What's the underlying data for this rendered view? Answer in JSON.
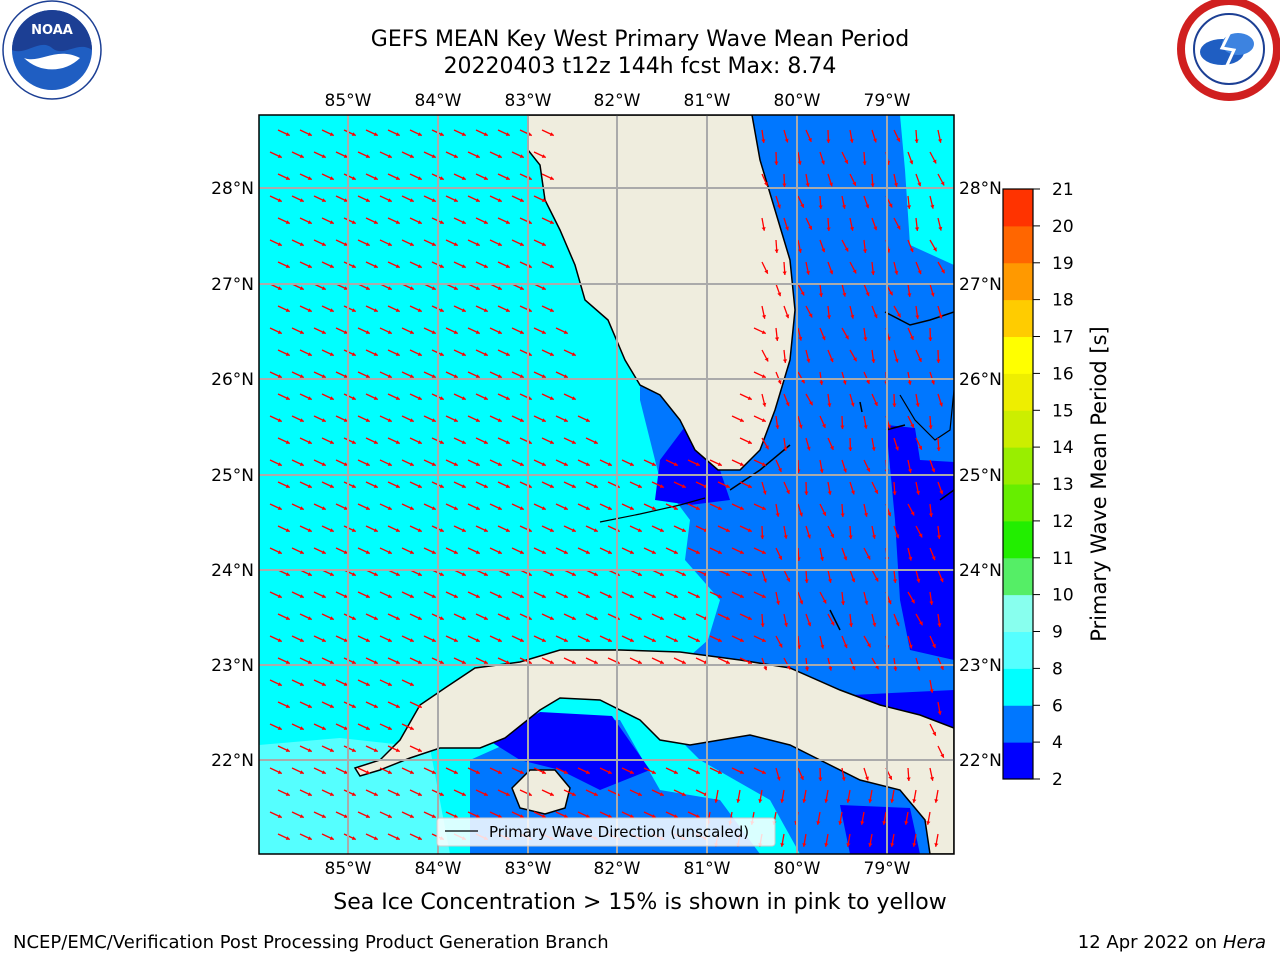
{
  "title": {
    "line1": "GEFS MEAN Key West Primary Wave Mean Period",
    "line2": "20220403 t12z 144h fcst   Max: 8.74"
  },
  "logos": {
    "left": {
      "icon": "noaa-logo",
      "text": "NOAA"
    },
    "right": {
      "icon": "nws-logo"
    }
  },
  "map": {
    "lon_labels": [
      "85°W",
      "84°W",
      "83°W",
      "82°W",
      "81°W",
      "80°W",
      "79°W"
    ],
    "lat_labels": [
      "28°N",
      "27°N",
      "26°N",
      "25°N",
      "24°N",
      "23°N",
      "22°N"
    ],
    "land_color": "#efedde",
    "arrow_color": "#ff0000",
    "legend_label": "Primary Wave Direction (unscaled)"
  },
  "colorbar": {
    "label": "Primary Wave Mean Period [s]",
    "ticks": [
      "2",
      "4",
      "6",
      "8",
      "9",
      "10",
      "11",
      "12",
      "13",
      "14",
      "15",
      "16",
      "17",
      "18",
      "19",
      "20",
      "21"
    ],
    "colors": [
      "#0000ff",
      "#0077ff",
      "#00ffff",
      "#55ffff",
      "#88ffee",
      "#55ee66",
      "#22ee00",
      "#66ee00",
      "#99ee00",
      "#ccee00",
      "#eeee00",
      "#ffff00",
      "#ffcc00",
      "#ff9900",
      "#ff6600",
      "#ff3300",
      "#ff0000"
    ]
  },
  "caption": "Sea Ice Concentration > 15% is shown in pink to yellow",
  "footer": {
    "left": "NCEP/EMC/Verification Post Processing Product Generation Branch",
    "right_date": "12 Apr 2022 on ",
    "right_host": "Hera"
  }
}
